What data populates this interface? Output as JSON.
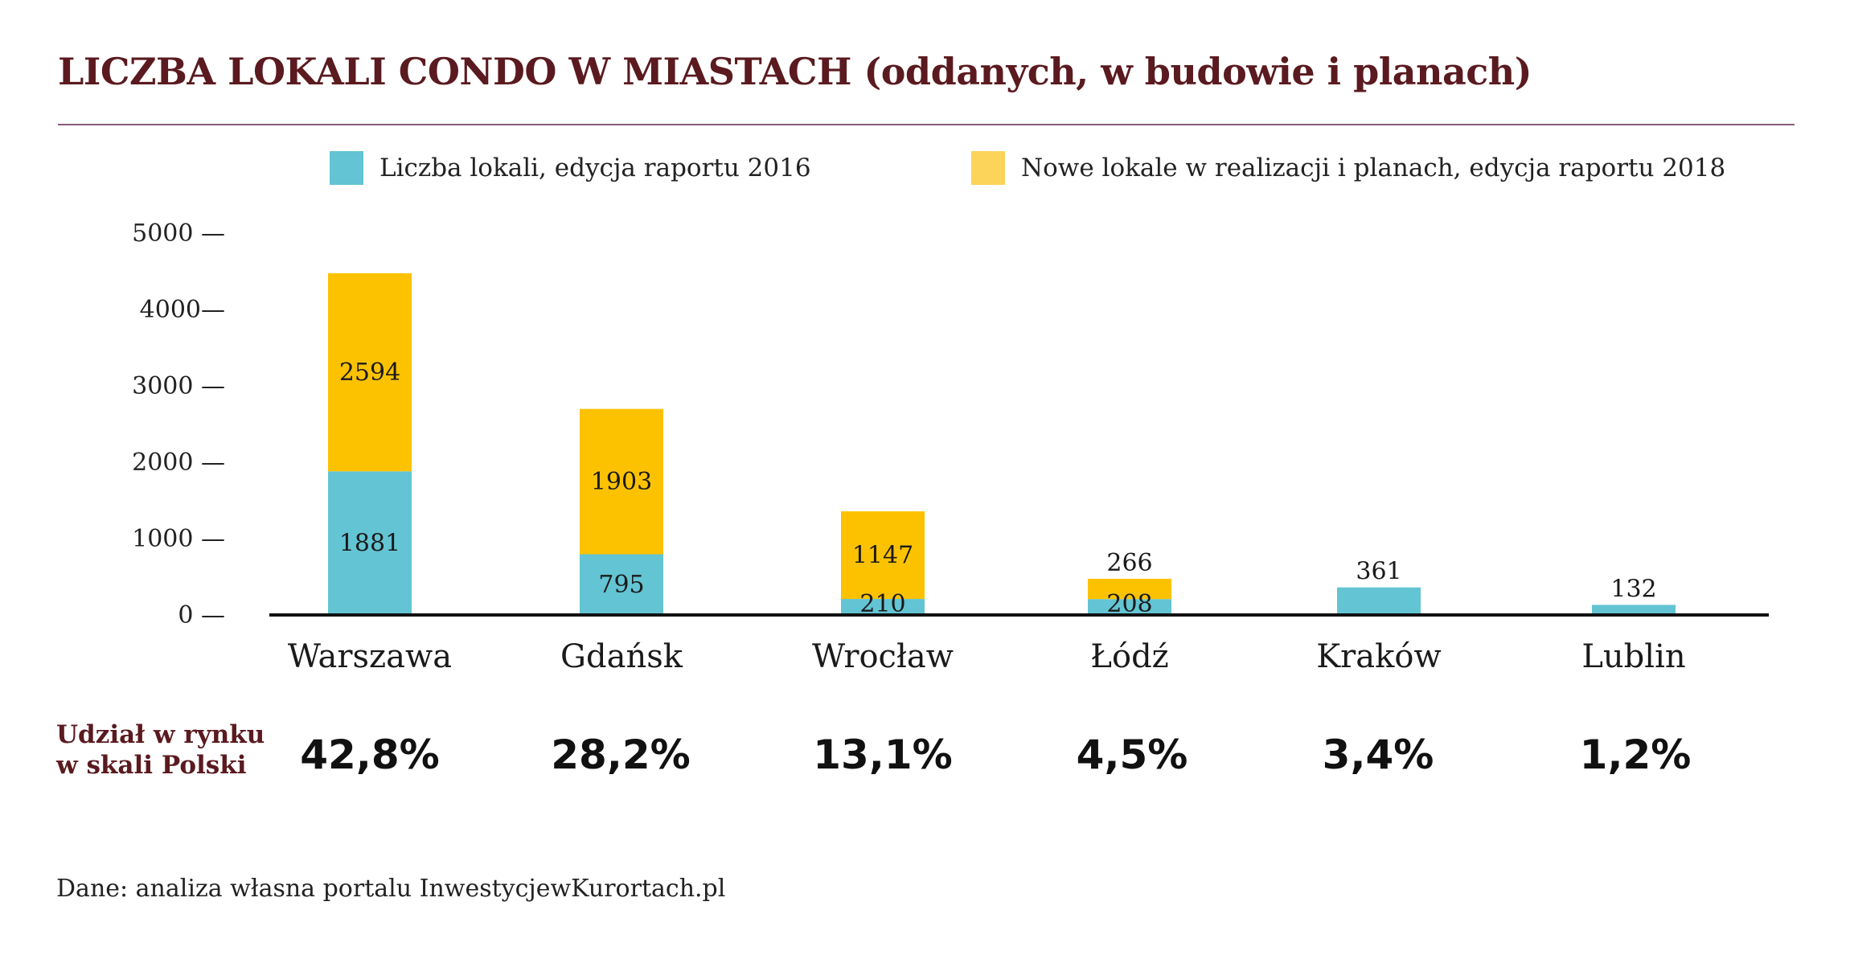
{
  "chart_data": {
    "type": "bar",
    "stacked": true,
    "title": "LICZBA LOKALI CONDO W MIASTACH (oddanych, w budowie i planach)",
    "categories": [
      "Warszawa",
      "Gdańsk",
      "Wrocław",
      "Łódź",
      "Kraków",
      "Lublin"
    ],
    "series": [
      {
        "name": "Liczba lokali, edycja raportu 2016",
        "color": "#63c4d3",
        "values": [
          1881,
          795,
          210,
          208,
          361,
          132
        ]
      },
      {
        "name": "Nowe lokale w realizacji i planach, edycja raportu 2018",
        "color": "#fcc200",
        "values": [
          2594,
          1903,
          1147,
          266,
          0,
          0
        ]
      }
    ],
    "yticks": [
      "0 —",
      "1000 —",
      "2000 —",
      "3000 —",
      "4000—",
      "5000 —"
    ],
    "ytick_values": [
      0,
      1000,
      2000,
      3000,
      4000,
      5000
    ],
    "ylim": [
      0,
      5000
    ],
    "legend_position": "top",
    "grid": false
  },
  "legend": {
    "swatch_colors": [
      "#63c4d3",
      "#fcd45a"
    ]
  },
  "share": {
    "label_line1": "Udział w rynku",
    "label_line2": "w skali Polski",
    "values": [
      "42,8%",
      "28,2%",
      "13,1%",
      "4,5%",
      "3,4%",
      "1,2%"
    ]
  },
  "source": "Dane: analiza własna portalu InwestycjewKurortach.pl"
}
